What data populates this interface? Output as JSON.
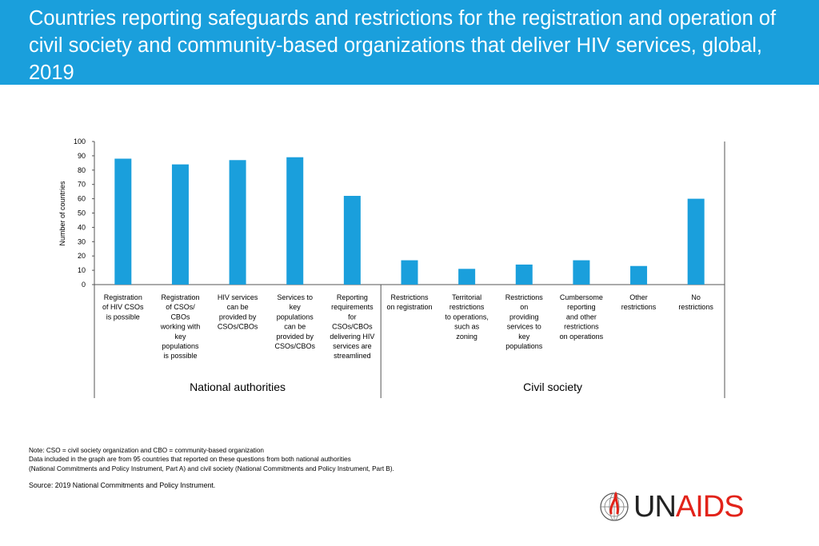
{
  "header": {
    "title": "Countries reporting safeguards and restrictions for the registration and operation of civil society and community-based organizations that deliver HIV services, global, 2019"
  },
  "chart_data": {
    "type": "bar",
    "title": "",
    "ylabel": "Number of countries",
    "ylim": [
      0,
      100
    ],
    "yticks": [
      0,
      10,
      20,
      30,
      40,
      50,
      60,
      70,
      80,
      90,
      100
    ],
    "grid": false,
    "bar_color": "#1a9fdc",
    "categories": [
      [
        "Registration",
        "of HIV CSOs",
        "is possible"
      ],
      [
        "Registration",
        "of CSOs/",
        "CBOs",
        "working with",
        "key",
        "populations",
        "is possible"
      ],
      [
        "HIV services",
        "can be",
        "provided by",
        "CSOs/CBOs"
      ],
      [
        "Services to",
        "key",
        "populations",
        "can be",
        "provided by",
        "CSOs/CBOs"
      ],
      [
        "Reporting",
        "requirements",
        "for",
        "CSOs/CBOs",
        "delivering HIV",
        "services are",
        "streamlined"
      ],
      [
        "Restrictions",
        "on registration"
      ],
      [
        "Territorial",
        "restrictions",
        "to operations,",
        "such as",
        "zoning"
      ],
      [
        "Restrictions",
        "on",
        "providing",
        "services to",
        "key",
        "populations"
      ],
      [
        "Cumbersome",
        "reporting",
        "and other",
        "restrictions",
        "on operations"
      ],
      [
        "Other",
        "restrictions"
      ],
      [
        "No",
        "restrictions"
      ]
    ],
    "values": [
      88,
      84,
      87,
      89,
      62,
      17,
      11,
      14,
      17,
      13,
      60
    ],
    "groups": [
      {
        "name": "National authorities",
        "count": 5
      },
      {
        "name": "Civil society",
        "count": 6
      }
    ]
  },
  "notes": {
    "lines": [
      "Note: CSO = civil society organization and CBO = community-based organization",
      "Data included in the graph are from 95 countries that reported on these questions from both national authorities",
      "(National Commitments and Policy Instrument, Part A) and civil society (National Commitments and Policy Instrument, Part B)."
    ],
    "source_label": "Source:",
    "source_text": " 2019 National Commitments and Policy Instrument."
  },
  "logo": {
    "un": "UN",
    "aids": "AIDS",
    "ribbon_color": "#e2231a"
  }
}
